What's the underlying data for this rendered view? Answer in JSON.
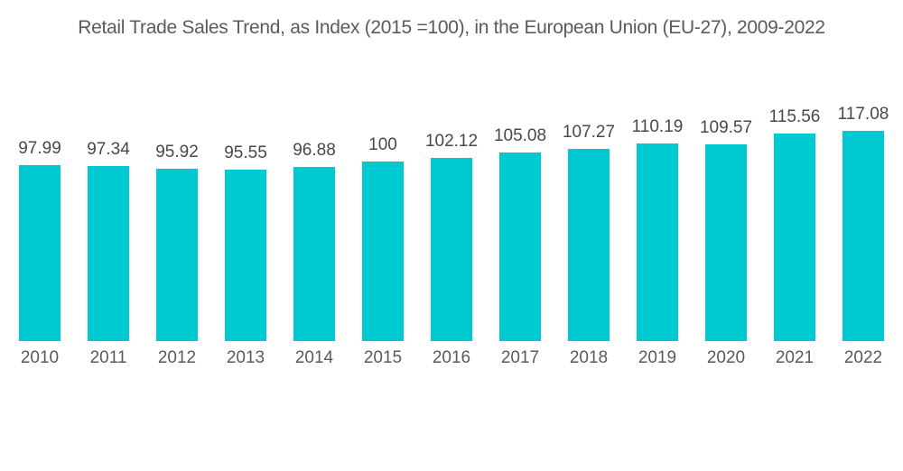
{
  "page": {
    "background": "#ffffff"
  },
  "chart_data": {
    "type": "bar",
    "title": "Retail Trade Sales Trend, as Index (2015 =100), in the European Union (EU-27), 2009-2022",
    "categories": [
      "2010",
      "2011",
      "2012",
      "2013",
      "2014",
      "2015",
      "2016",
      "2017",
      "2018",
      "2019",
      "2020",
      "2021",
      "2022"
    ],
    "values": [
      97.99,
      97.34,
      95.92,
      95.55,
      96.88,
      100,
      102.12,
      105.08,
      107.27,
      110.19,
      109.57,
      115.56,
      117.08
    ],
    "value_labels": [
      "97.99",
      "97.34",
      "95.92",
      "95.55",
      "96.88",
      "100",
      "102.12",
      "105.08",
      "107.27",
      "110.19",
      "109.57",
      "115.56",
      "117.08"
    ],
    "bar_color": "#00C9D2",
    "title_color": "#5a5b5d",
    "value_label_color": "#47484a",
    "axis_label_color": "#595a5c",
    "ylim": [
      0,
      120
    ],
    "grid": false,
    "legend": false,
    "xlabel": "",
    "ylabel": "",
    "value_labels_position": "above-bars"
  }
}
